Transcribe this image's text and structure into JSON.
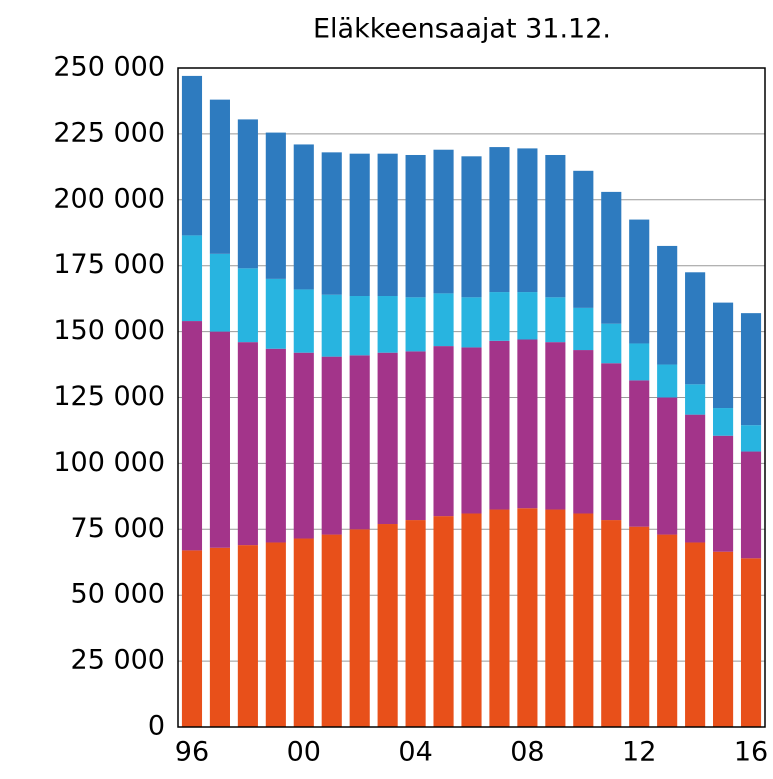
{
  "chart_data": {
    "type": "stacked_bar",
    "title": "Eläkkeensaajat 31.12.",
    "categories": [
      "96",
      null,
      null,
      null,
      "00",
      null,
      null,
      null,
      "04",
      null,
      null,
      null,
      "08",
      null,
      null,
      null,
      "12",
      null,
      null,
      null,
      "16"
    ],
    "series": [
      {
        "color": "#e8501a",
        "values": [
          67000,
          68000,
          69000,
          70000,
          71500,
          73000,
          75000,
          77000,
          78500,
          80000,
          81000,
          82500,
          83000,
          82500,
          81000,
          78500,
          76000,
          73000,
          70000,
          66500,
          64000
        ]
      },
      {
        "color": "#a3348a",
        "values": [
          87000,
          82000,
          77000,
          73500,
          70500,
          67500,
          66000,
          65000,
          64000,
          64500,
          63000,
          64000,
          64000,
          63500,
          62000,
          59500,
          55500,
          52000,
          48500,
          44000,
          40500
        ]
      },
      {
        "color": "#28b4e0",
        "values": [
          32500,
          29500,
          28000,
          26500,
          24000,
          23500,
          22500,
          21500,
          20500,
          20000,
          19000,
          18500,
          18000,
          17000,
          16000,
          15000,
          14000,
          12500,
          11500,
          10500,
          10000
        ]
      },
      {
        "color": "#2e7bbf",
        "values": [
          60500,
          58500,
          56500,
          55500,
          55000,
          54000,
          54000,
          54000,
          54000,
          54500,
          53500,
          55000,
          54500,
          54000,
          52000,
          50000,
          47000,
          45000,
          42500,
          40000,
          42500
        ]
      }
    ],
    "ylim": [
      0,
      250000
    ],
    "yticks": [
      0,
      {
        "value": 25000,
        "label": "25 000"
      },
      {
        "value": 50000,
        "label": "50 000"
      },
      {
        "value": 75000,
        "label": "75 000"
      },
      {
        "value": 100000,
        "label": "100 000"
      },
      {
        "value": 125000,
        "label": "125 000"
      },
      {
        "value": 150000,
        "label": "150 000"
      },
      {
        "value": 175000,
        "label": "175 000"
      },
      {
        "value": 200000,
        "label": "200 000"
      },
      {
        "value": 225000,
        "label": "225 000"
      },
      {
        "value": 250000,
        "label": "250 000"
      }
    ],
    "grid": true
  }
}
